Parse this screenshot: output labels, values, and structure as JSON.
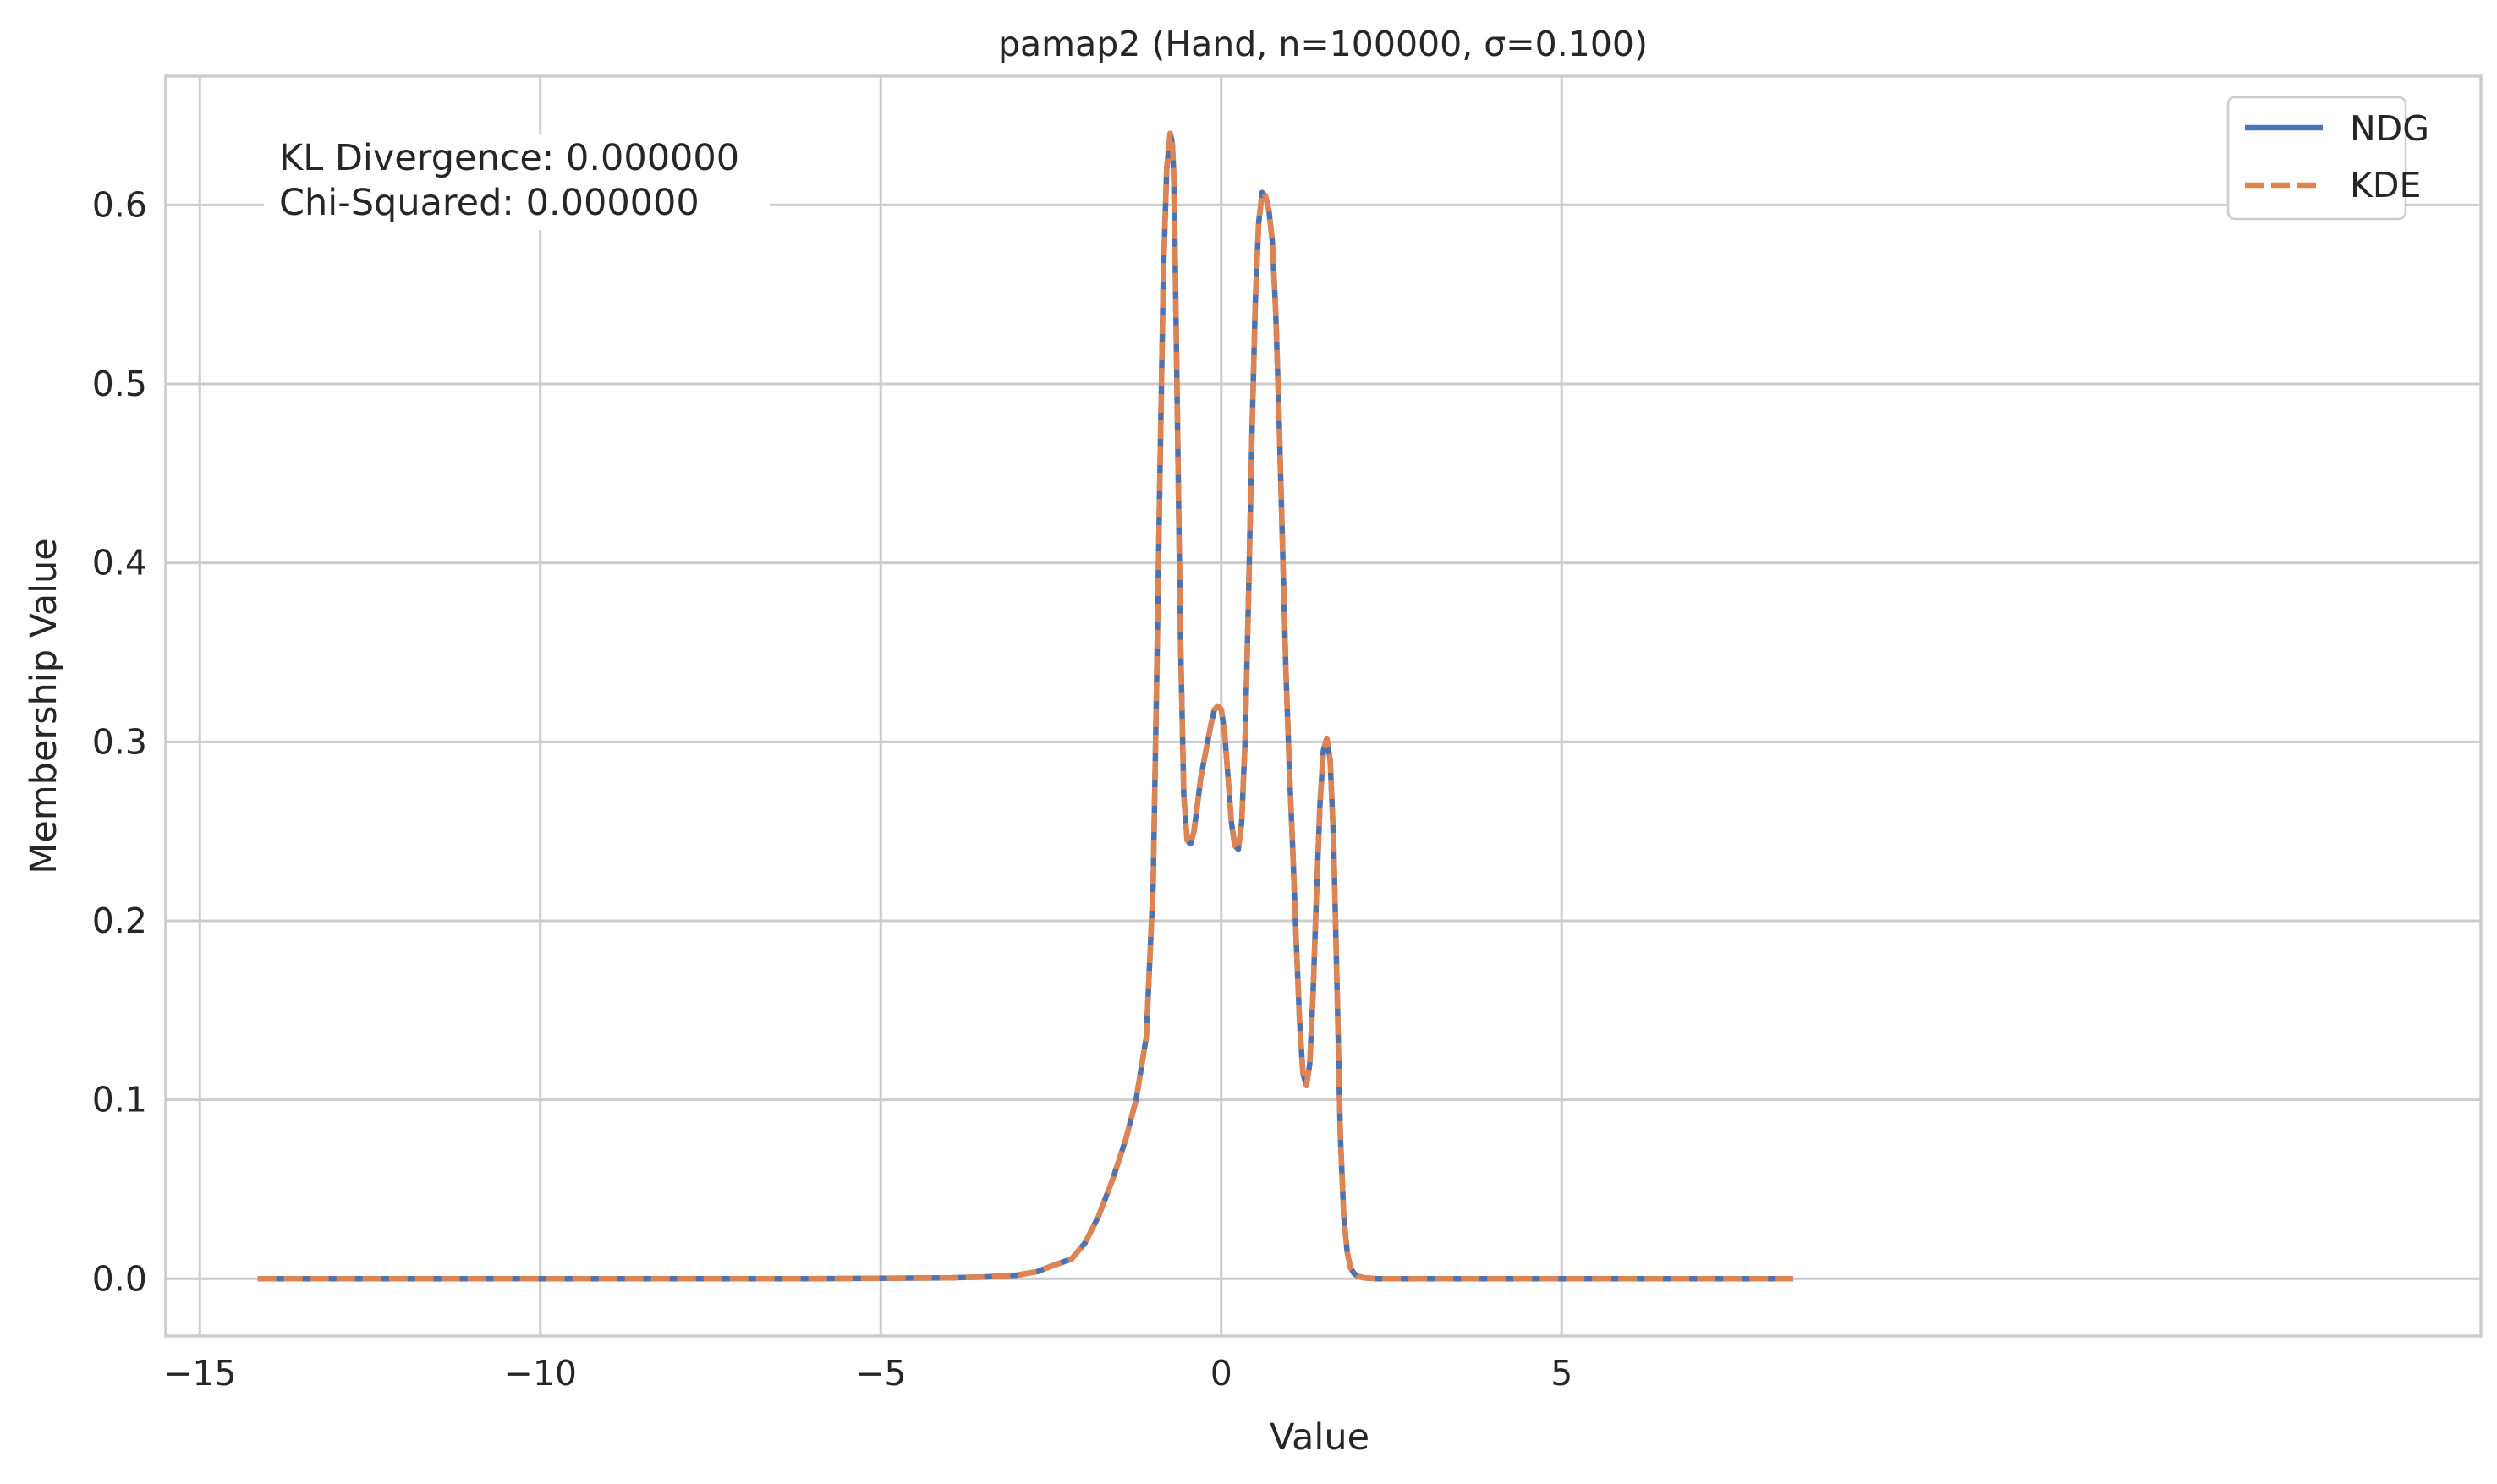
{
  "chart_data": {
    "type": "line",
    "title": "pamap2 (Hand, n=100000, σ=0.100)",
    "xlabel": "Value",
    "ylabel": "Membership Value",
    "xlim": [
      -15.5,
      18.5
    ],
    "ylim": [
      -0.032,
      0.672
    ],
    "xticks": [
      -15,
      -10,
      -5,
      0,
      5
    ],
    "xtick_labels": [
      "−15",
      "−10",
      "−5",
      "0",
      "5"
    ],
    "yticks": [
      0.0,
      0.1,
      0.2,
      0.3,
      0.4,
      0.5,
      0.6
    ],
    "ytick_labels": [
      "0.0",
      "0.1",
      "0.2",
      "0.3",
      "0.4",
      "0.5",
      "0.6"
    ],
    "grid": true,
    "legend_position": "top-right",
    "annotation": [
      "KL Divergence: 0.000000",
      "Chi-Squared: 0.000000"
    ],
    "x": [
      -14.15,
      -12,
      -10,
      -8,
      -6,
      -4,
      -3.5,
      -3,
      -2.7,
      -2.5,
      -2.2,
      -2.0,
      -1.8,
      -1.6,
      -1.4,
      -1.25,
      -1.1,
      -1.0,
      -0.95,
      -0.9,
      -0.85,
      -0.8,
      -0.75,
      -0.72,
      -0.7,
      -0.68,
      -0.65,
      -0.6,
      -0.55,
      -0.5,
      -0.45,
      -0.4,
      -0.35,
      -0.3,
      -0.25,
      -0.2,
      -0.15,
      -0.1,
      -0.05,
      0.0,
      0.05,
      0.1,
      0.15,
      0.2,
      0.25,
      0.3,
      0.35,
      0.4,
      0.45,
      0.5,
      0.55,
      0.6,
      0.65,
      0.7,
      0.75,
      0.8,
      0.85,
      0.9,
      0.95,
      1.0,
      1.05,
      1.1,
      1.15,
      1.2,
      1.25,
      1.3,
      1.35,
      1.4,
      1.45,
      1.5,
      1.55,
      1.6,
      1.65,
      1.7,
      1.75,
      1.8,
      1.85,
      1.9,
      1.95,
      2.0,
      2.05,
      2.1,
      2.2,
      2.3,
      2.5,
      3.0,
      4.0,
      5.0,
      6.0,
      7.0,
      8.4
    ],
    "series": [
      {
        "name": "NDG",
        "color": "#4c72b0",
        "style": "solid",
        "values": [
          0.0,
          0.0,
          0.0,
          0.0,
          0.0,
          0.0005,
          0.001,
          0.002,
          0.004,
          0.007,
          0.011,
          0.02,
          0.035,
          0.055,
          0.078,
          0.1,
          0.135,
          0.22,
          0.33,
          0.45,
          0.56,
          0.62,
          0.64,
          0.635,
          0.62,
          0.58,
          0.5,
          0.36,
          0.27,
          0.245,
          0.243,
          0.25,
          0.265,
          0.28,
          0.29,
          0.3,
          0.31,
          0.318,
          0.32,
          0.318,
          0.305,
          0.28,
          0.255,
          0.242,
          0.24,
          0.255,
          0.3,
          0.38,
          0.47,
          0.545,
          0.59,
          0.607,
          0.605,
          0.597,
          0.58,
          0.54,
          0.48,
          0.41,
          0.34,
          0.285,
          0.24,
          0.19,
          0.145,
          0.115,
          0.108,
          0.12,
          0.16,
          0.215,
          0.265,
          0.295,
          0.302,
          0.29,
          0.245,
          0.165,
          0.08,
          0.035,
          0.015,
          0.006,
          0.003,
          0.0015,
          0.001,
          0.0005,
          0.0002,
          0.0,
          0.0,
          0.0,
          0.0,
          0.0,
          0.0,
          0.0,
          0.0
        ]
      },
      {
        "name": "KDE",
        "color": "#dd8452",
        "style": "dashed",
        "values": [
          0.0,
          0.0,
          0.0,
          0.0,
          0.0,
          0.0005,
          0.001,
          0.002,
          0.004,
          0.007,
          0.011,
          0.02,
          0.035,
          0.055,
          0.078,
          0.1,
          0.135,
          0.22,
          0.33,
          0.45,
          0.56,
          0.62,
          0.64,
          0.635,
          0.62,
          0.58,
          0.5,
          0.36,
          0.27,
          0.245,
          0.243,
          0.25,
          0.265,
          0.28,
          0.29,
          0.3,
          0.31,
          0.318,
          0.32,
          0.318,
          0.305,
          0.28,
          0.255,
          0.242,
          0.24,
          0.255,
          0.3,
          0.38,
          0.47,
          0.545,
          0.59,
          0.607,
          0.605,
          0.597,
          0.58,
          0.54,
          0.48,
          0.41,
          0.34,
          0.285,
          0.24,
          0.19,
          0.145,
          0.115,
          0.108,
          0.12,
          0.16,
          0.215,
          0.265,
          0.295,
          0.302,
          0.29,
          0.245,
          0.165,
          0.08,
          0.035,
          0.015,
          0.006,
          0.003,
          0.0015,
          0.001,
          0.0005,
          0.0002,
          0.0,
          0.0,
          0.0,
          0.0,
          0.0,
          0.0,
          0.0,
          0.0
        ]
      }
    ]
  }
}
